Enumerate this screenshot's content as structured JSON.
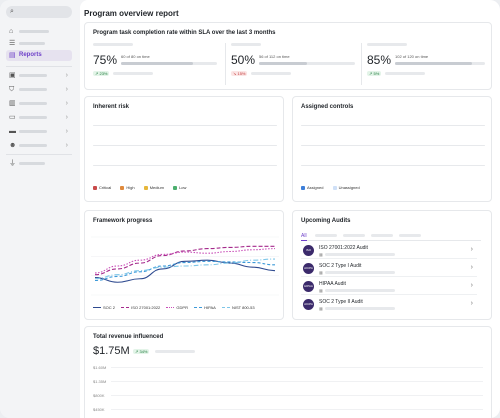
{
  "page": {
    "title": "Program overview report"
  },
  "sidebar": {
    "reports_label": "Reports",
    "icons": [
      "search-icon",
      "home-icon",
      "list-icon",
      "reports-icon",
      "clipboard-icon",
      "shield-icon",
      "book-icon",
      "document-icon",
      "monitor-icon",
      "users-icon",
      "plug-icon"
    ]
  },
  "sla": {
    "title": "Program task completion rate within SLA over the last 3 months",
    "metrics": [
      {
        "value": "75%",
        "detail": "60 of 80 on time",
        "delta": "23%",
        "trend": "up",
        "fill": 0.75
      },
      {
        "value": "50%",
        "detail": "56 of 112 on time",
        "delta": "15%",
        "trend": "down",
        "fill": 0.5
      },
      {
        "value": "85%",
        "detail": "102 of 120 on time",
        "delta": "5%",
        "trend": "up",
        "fill": 0.85
      }
    ]
  },
  "inherent_risk": {
    "title": "Inherent risk",
    "legend": [
      {
        "label": "Critical",
        "color": "#c94b4b"
      },
      {
        "label": "High",
        "color": "#e08a3c"
      },
      {
        "label": "Medium",
        "color": "#e6b73b"
      },
      {
        "label": "Low",
        "color": "#4caf6e"
      }
    ]
  },
  "assigned_controls": {
    "title": "Assigned controls",
    "legend": [
      {
        "label": "Assigned",
        "color": "#3d7fd9"
      },
      {
        "label": "Unassigned",
        "color": "#cfe0f7"
      }
    ]
  },
  "framework": {
    "title": "Framework progress",
    "legend": [
      {
        "label": "SOC 2",
        "color": "#2e4a8f"
      },
      {
        "label": "ISO 27001:2022",
        "color": "#a52a8c"
      },
      {
        "label": "GDPR",
        "color": "#c94fb8"
      },
      {
        "label": "HIPAA",
        "color": "#3d9ad9"
      },
      {
        "label": "NIST 800-53",
        "color": "#7ec6e8"
      }
    ]
  },
  "audits": {
    "title": "Upcoming Audits",
    "tab_all": "All",
    "items": [
      {
        "name": "ISO 27001:2022 Audit",
        "logo": "ISO"
      },
      {
        "name": "SOC 2 Type I Audit",
        "logo": "AICPA"
      },
      {
        "name": "HIPAA Audit",
        "logo": "HIPAA"
      },
      {
        "name": "SOC 2 Type II Audit",
        "logo": "AICPA"
      }
    ]
  },
  "revenue": {
    "title": "Total revenue influenced",
    "value": "$1.75M",
    "delta": "34%",
    "ticks": [
      "$1.60M",
      "$1.35M",
      "$800K",
      "$450K"
    ]
  },
  "chart_data": {
    "type": "line",
    "x": [
      0,
      1,
      2,
      3,
      4,
      5,
      6,
      7,
      8
    ],
    "series": [
      {
        "name": "SOC 2",
        "values": [
          30,
          22,
          28,
          45,
          58,
          60,
          55,
          48,
          42
        ]
      },
      {
        "name": "ISO 27001:2022",
        "values": [
          35,
          45,
          55,
          68,
          76,
          80,
          82,
          84,
          84
        ]
      },
      {
        "name": "GDPR",
        "values": [
          38,
          50,
          60,
          70,
          74,
          72,
          75,
          78,
          80
        ]
      },
      {
        "name": "HIPAA",
        "values": [
          25,
          32,
          40,
          50,
          56,
          58,
          57,
          56,
          52
        ]
      },
      {
        "name": "NIST 800-53",
        "values": [
          28,
          35,
          42,
          48,
          50,
          52,
          55,
          60,
          62
        ]
      }
    ],
    "ylim": [
      0,
      100
    ]
  }
}
